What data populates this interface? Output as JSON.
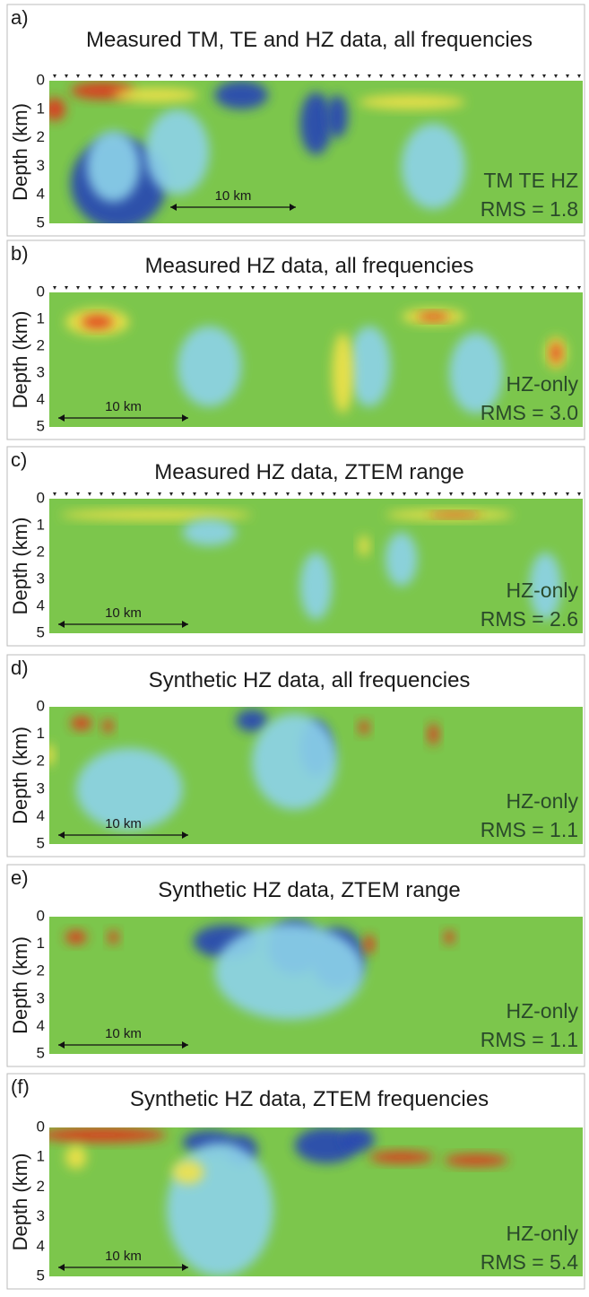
{
  "panels": [
    {
      "label": "a)",
      "title": "Measured TM, TE and HZ data, all frequencies",
      "ylabel": "Depth (km)",
      "yticks": [
        0,
        1,
        2,
        3,
        4,
        5
      ],
      "scale": "10 km",
      "data": "TM TE HZ",
      "rms": "RMS = 1.8"
    },
    {
      "label": "b)",
      "title": "Measured HZ data, all frequencies",
      "ylabel": "Depth (km)",
      "yticks": [
        0,
        1,
        2,
        3,
        4,
        5
      ],
      "scale": "10 km",
      "data": "HZ-only",
      "rms": "RMS = 3.0"
    },
    {
      "label": "c)",
      "title": "Measured HZ data, ZTEM range",
      "ylabel": "Depth (km)",
      "yticks": [
        0,
        1,
        2,
        3,
        4,
        5
      ],
      "scale": "10 km",
      "data": "HZ-only",
      "rms": "RMS = 2.6"
    },
    {
      "label": "d)",
      "title": "Synthetic HZ data, all frequencies",
      "ylabel": "Depth (km)",
      "yticks": [
        0,
        1,
        2,
        3,
        4,
        5
      ],
      "scale": "10 km",
      "data": "HZ-only",
      "rms": "RMS = 1.1"
    },
    {
      "label": "e)",
      "title": "Synthetic HZ data, ZTEM range",
      "ylabel": "Depth (km)",
      "yticks": [
        0,
        1,
        2,
        3,
        4,
        5
      ],
      "scale": "10 km",
      "data": "HZ-only",
      "rms": "RMS = 1.1"
    },
    {
      "label": "(f)",
      "title": "Synthetic HZ data, ZTEM frequencies",
      "ylabel": "Depth (km)",
      "yticks": [
        0,
        1,
        2,
        3,
        4,
        5
      ],
      "scale": "10 km",
      "data": "HZ-only",
      "rms": "RMS = 5.4"
    }
  ]
}
